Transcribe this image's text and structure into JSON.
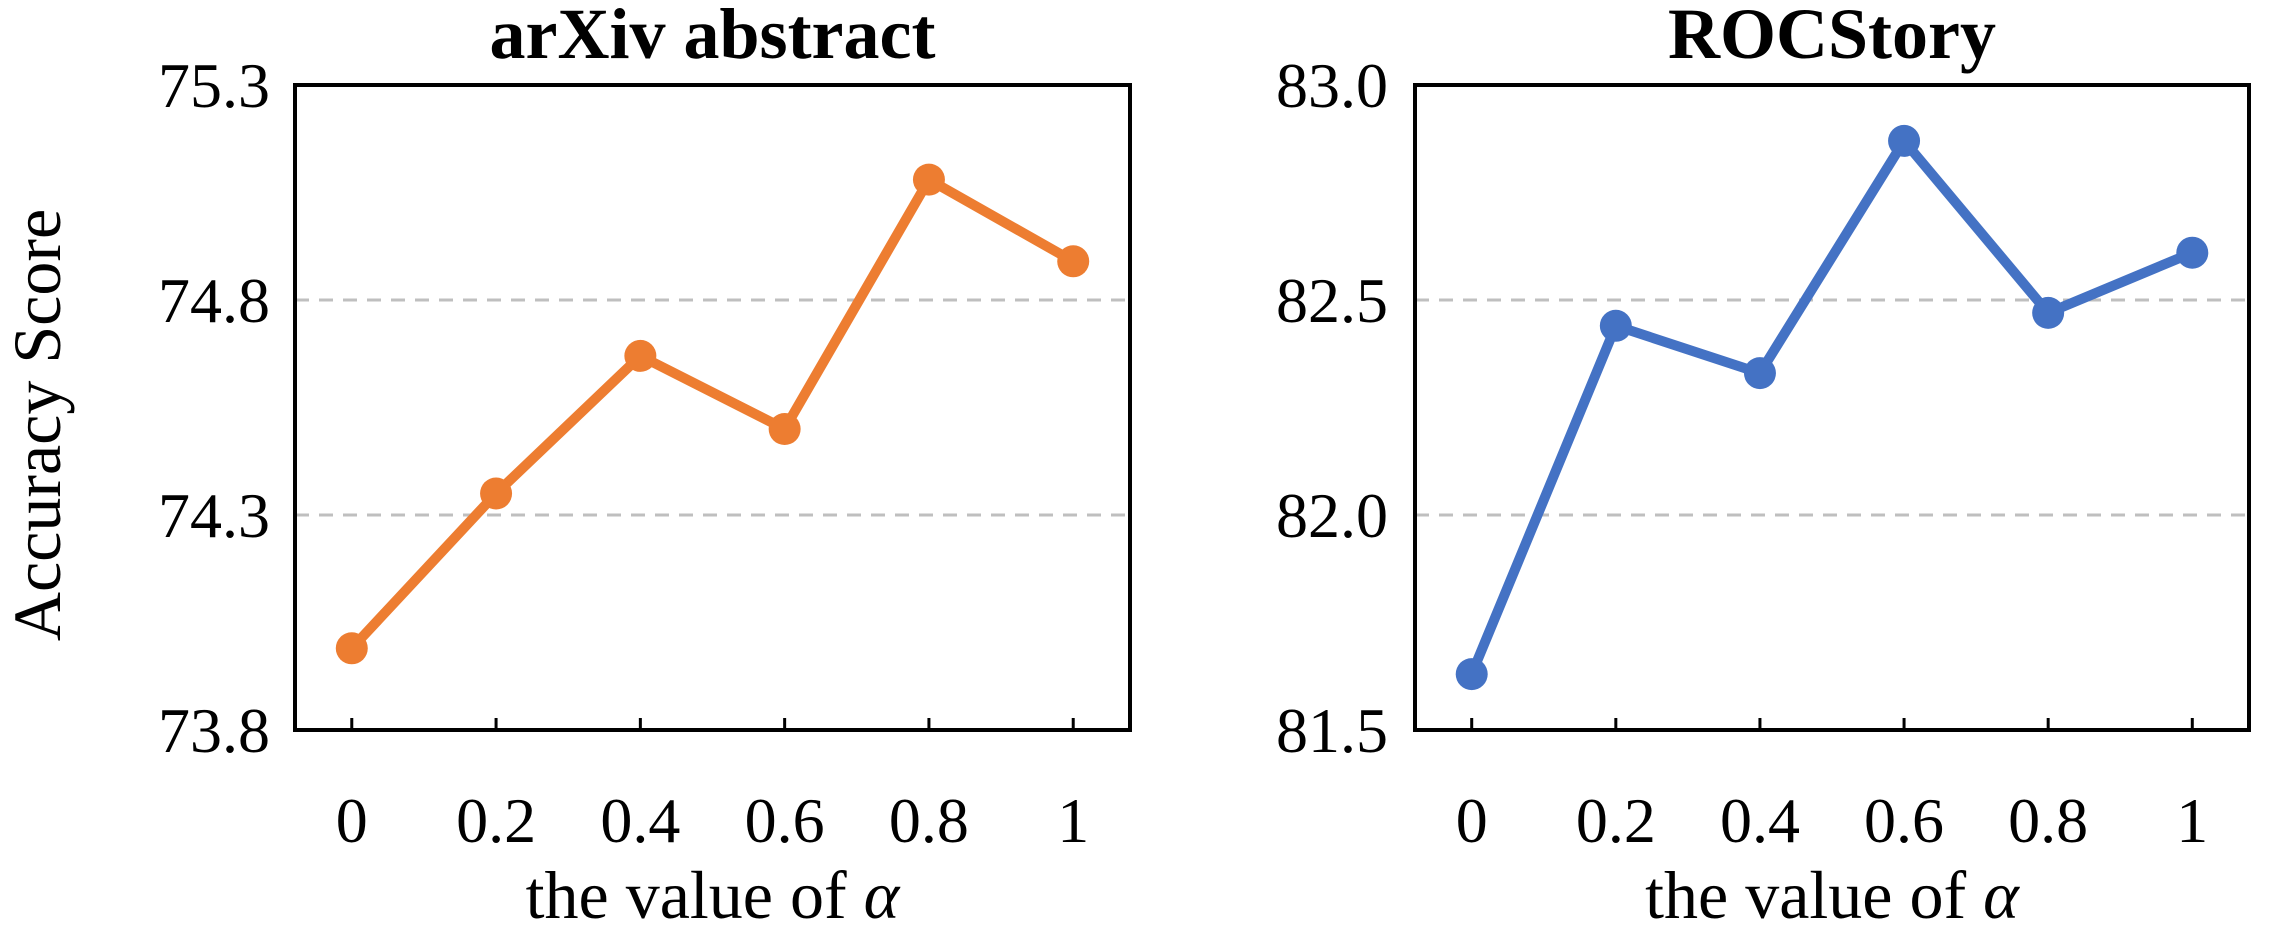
{
  "figure": {
    "ylabel": "Accuracy Score"
  },
  "chart_data": [
    {
      "type": "line",
      "title": "arXiv abstract",
      "xlabel_prefix": "the value of ",
      "xlabel_symbol": "α",
      "ylabel": "Accuracy Score",
      "x": [
        0,
        0.2,
        0.4,
        0.6,
        0.8,
        1
      ],
      "x_tick_labels": [
        "0",
        "0.2",
        "0.4",
        "0.6",
        "0.8",
        "1"
      ],
      "ylim": [
        73.8,
        75.3
      ],
      "y_ticks": [
        73.8,
        74.3,
        74.8,
        75.3
      ],
      "y_tick_labels": [
        "73.8",
        "74.3",
        "74.8",
        "75.3"
      ],
      "gridlines": [
        74.3,
        74.8
      ],
      "grid": "horizontal dashed",
      "color": "#ED7D31",
      "series": [
        {
          "values": [
            73.99,
            74.35,
            74.67,
            74.5,
            75.08,
            74.89
          ]
        }
      ]
    },
    {
      "type": "line",
      "title": "ROCStory",
      "xlabel_prefix": "the value of ",
      "xlabel_symbol": "α",
      "ylabel": "",
      "x": [
        0,
        0.2,
        0.4,
        0.6,
        0.8,
        1
      ],
      "x_tick_labels": [
        "0",
        "0.2",
        "0.4",
        "0.6",
        "0.8",
        "1"
      ],
      "ylim": [
        81.5,
        83.0
      ],
      "y_ticks": [
        81.5,
        82.0,
        82.5,
        83.0
      ],
      "y_tick_labels": [
        "81.5",
        "82.0",
        "82.5",
        "83.0"
      ],
      "gridlines": [
        82.0,
        82.5
      ],
      "grid": "horizontal dashed",
      "color": "#4472C4",
      "series": [
        {
          "values": [
            81.63,
            82.44,
            82.33,
            82.87,
            82.47,
            82.61
          ]
        }
      ]
    }
  ]
}
